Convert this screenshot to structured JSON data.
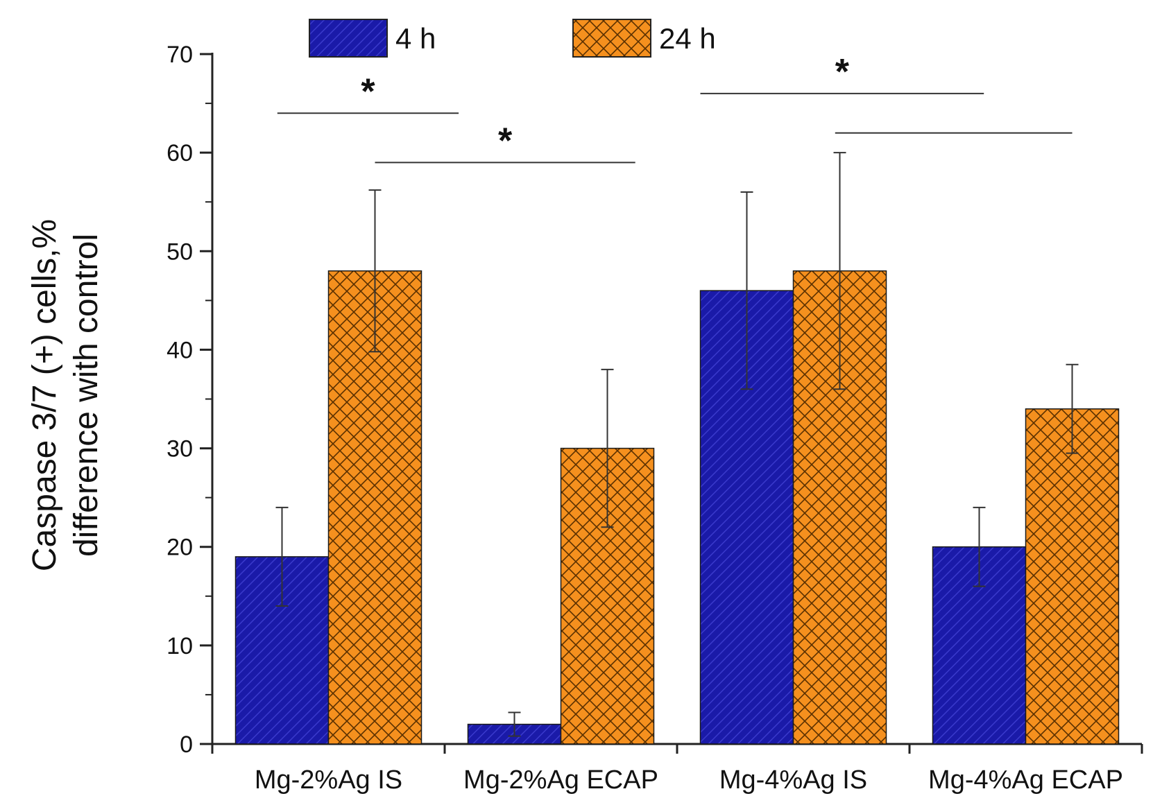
{
  "chart_data": {
    "type": "bar",
    "categories": [
      "Mg-2%Ag IS",
      "Mg-2%Ag ECAP",
      "Mg-4%Ag IS",
      "Mg-4%Ag ECAP"
    ],
    "series": [
      {
        "name": "4 h",
        "values": [
          19,
          2,
          46,
          20
        ],
        "errors": [
          5,
          1.2,
          10,
          4
        ],
        "color": "#1a1aa8",
        "pattern": "diagonal-hatch"
      },
      {
        "name": "24 h",
        "values": [
          48,
          30,
          48,
          34
        ],
        "errors": [
          8.2,
          8,
          12,
          4.5
        ],
        "color": "#f5901e",
        "pattern": "cross-hatch"
      }
    ],
    "ylabel_lines": [
      "Caspase 3/7 (+) cells,%",
      "difference with control"
    ],
    "ylim": [
      0,
      70
    ],
    "yticks": [
      "0",
      "10",
      "20",
      "30",
      "40",
      "50",
      "60",
      "70"
    ],
    "legend_position": "top",
    "grid": false,
    "significance": [
      {
        "label": "*",
        "from_category": 0,
        "to_category": 1,
        "y": 64
      },
      {
        "label": "*",
        "from_category": 1,
        "to_category": 1,
        "y": 59
      },
      {
        "label": "*",
        "from_category": 2,
        "to_category": 3,
        "y": 66
      },
      {
        "label": "",
        "from_category": 2,
        "to_category": 3,
        "y": 62
      }
    ]
  }
}
